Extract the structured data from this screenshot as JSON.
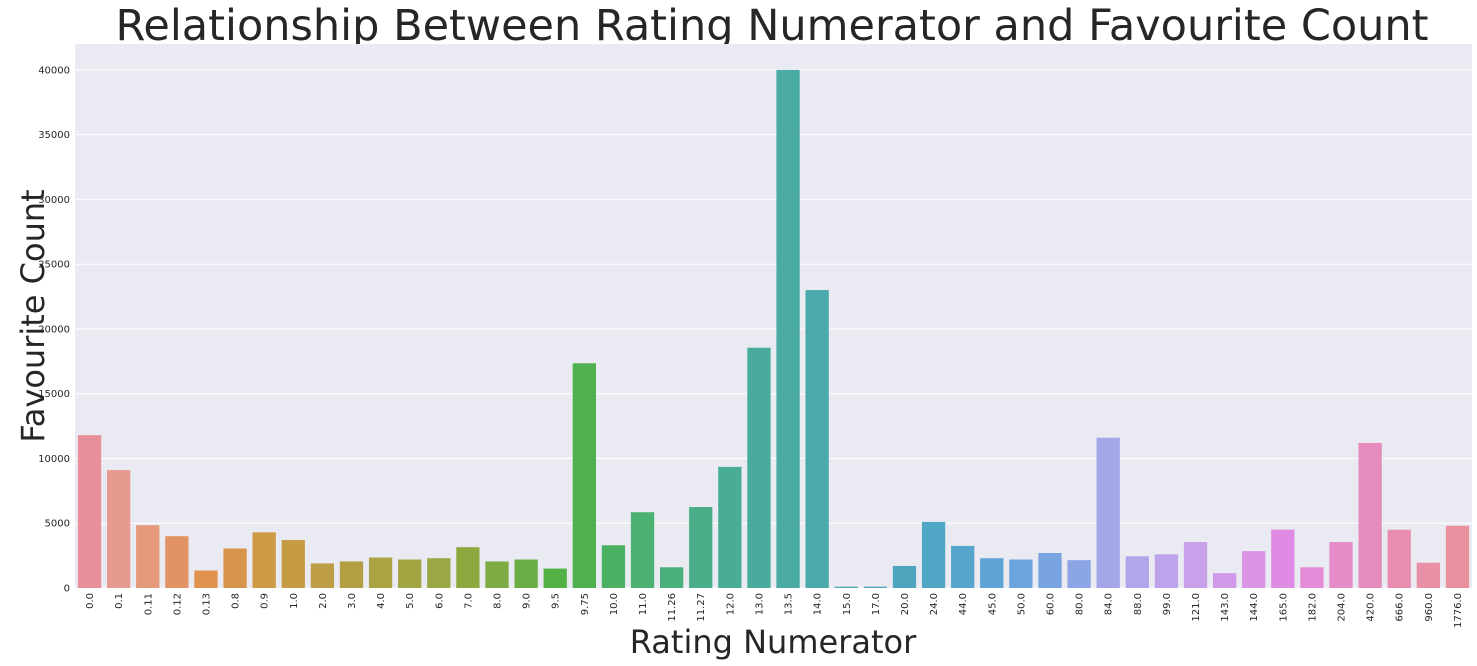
{
  "chart_data": {
    "type": "bar",
    "title": "Relationship Between Rating Numerator and Favourite Count",
    "xlabel": "Rating Numerator",
    "ylabel": "Favourite Count",
    "ylim": [
      0,
      42000
    ],
    "yticks": [
      0,
      5000,
      10000,
      15000,
      20000,
      25000,
      30000,
      35000,
      40000
    ],
    "grid": true,
    "categories": [
      "0.0",
      "0.1",
      "0.11",
      "0.12",
      "0.13",
      "0.8",
      "0.9",
      "1.0",
      "2.0",
      "3.0",
      "4.0",
      "5.0",
      "6.0",
      "7.0",
      "8.0",
      "9.0",
      "9.5",
      "9.75",
      "10.0",
      "11.0",
      "11.26",
      "11.27",
      "12.0",
      "13.0",
      "13.5",
      "14.0",
      "15.0",
      "17.0",
      "20.0",
      "24.0",
      "44.0",
      "45.0",
      "50.0",
      "60.0",
      "80.0",
      "84.0",
      "88.0",
      "99.0",
      "121.0",
      "143.0",
      "144.0",
      "165.0",
      "182.0",
      "204.0",
      "420.0",
      "666.0",
      "960.0",
      "1776.0"
    ],
    "values": [
      11800,
      9100,
      4850,
      4000,
      1350,
      3050,
      4300,
      3700,
      1900,
      2050,
      2350,
      2200,
      2300,
      3150,
      2050,
      2200,
      1500,
      17350,
      3300,
      5850,
      1600,
      6250,
      9350,
      18550,
      40000,
      23000,
      100,
      100,
      1700,
      5100,
      3250,
      2300,
      2200,
      2700,
      2150,
      11600,
      2450,
      2600,
      3550,
      1150,
      2850,
      4500,
      1600,
      3550,
      11200,
      4500,
      1950,
      4800
    ],
    "colors": [
      "#e8909a",
      "#e69a90",
      "#e59a7c",
      "#e29365",
      "#e0914c",
      "#d9944b",
      "#cf9a46",
      "#c59c44",
      "#bd9d45",
      "#b39f44",
      "#aca342",
      "#a3a542",
      "#9aa744",
      "#8ea840",
      "#7eac44",
      "#6bae45",
      "#52b145",
      "#4fb050",
      "#4bb163",
      "#4ab170",
      "#49b07c",
      "#49ae87",
      "#48ad92",
      "#48ab9c",
      "#4aaaa4",
      "#4aa9ab",
      "#4ba8b1",
      "#4ca7b8",
      "#4ea6be",
      "#50a6c5",
      "#55a5cd",
      "#5ea5d5",
      "#6aa5dc",
      "#78a4e1",
      "#8ba5e5",
      "#a3a7ea",
      "#b1a5ec",
      "#bea3ec",
      "#c8a1ea",
      "#d19ae8",
      "#da94e6",
      "#e08be3",
      "#e48cd8",
      "#e58cc9",
      "#e68bbd",
      "#e78eb0",
      "#e890a6",
      "#e8929f"
    ]
  }
}
